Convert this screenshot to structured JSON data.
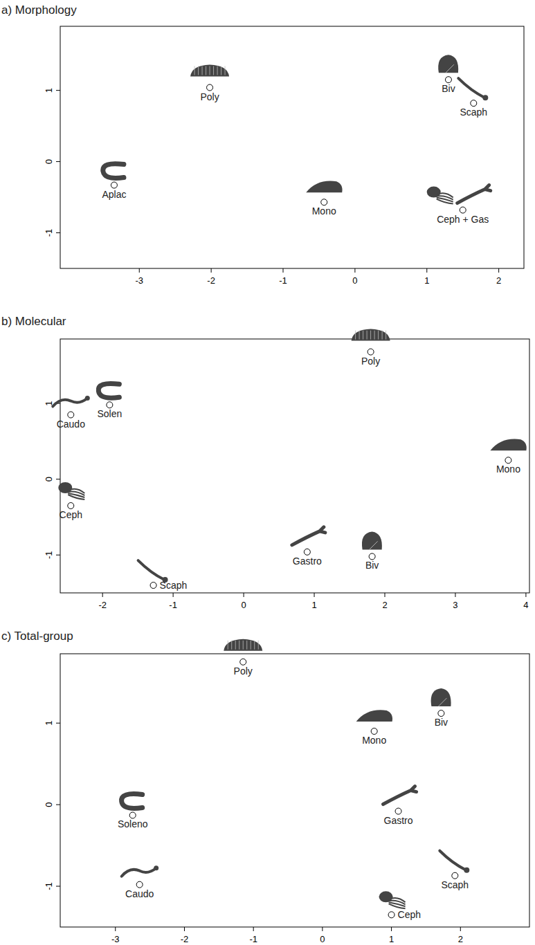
{
  "chart_data": [
    {
      "type": "scatter",
      "title": "a)  Morphology",
      "xlim": [
        -4.1,
        2.35
      ],
      "ylim": [
        -1.5,
        1.9
      ],
      "xticks": [
        -3,
        -2,
        -1,
        0,
        1,
        2
      ],
      "yticks": [
        -1,
        0,
        1
      ],
      "series": [
        {
          "name": "Poly",
          "marker": "chiton",
          "x": [
            -2.02
          ],
          "values": [
            1.04
          ]
        },
        {
          "name": "Aplac",
          "marker": "worm-c",
          "x": [
            -3.35
          ],
          "values": [
            -0.33
          ]
        },
        {
          "name": "Mono",
          "marker": "cap",
          "x": [
            -0.43
          ],
          "values": [
            -0.57
          ]
        },
        {
          "name": "Biv",
          "marker": "clam",
          "x": [
            1.3
          ],
          "values": [
            1.15
          ]
        },
        {
          "name": "Scaph",
          "marker": "tusk",
          "x": [
            1.65
          ],
          "values": [
            0.82
          ]
        },
        {
          "name": "Ceph + Gas",
          "marker": "octopus-slug",
          "x": [
            1.5
          ],
          "values": [
            -0.68
          ]
        }
      ]
    },
    {
      "type": "scatter",
      "title": "b)  Molecular",
      "xlim": [
        -2.6,
        4.05
      ],
      "ylim": [
        -1.5,
        1.85
      ],
      "xticks": [
        -2,
        -1,
        0,
        1,
        2,
        3,
        4
      ],
      "yticks": [
        -1,
        0,
        1
      ],
      "series": [
        {
          "name": "Poly",
          "marker": "chiton",
          "x": [
            1.8
          ],
          "values": [
            1.68
          ]
        },
        {
          "name": "Solen",
          "marker": "worm-c",
          "x": [
            -1.9
          ],
          "values": [
            0.98
          ]
        },
        {
          "name": "Caudo",
          "marker": "worm",
          "x": [
            -2.45
          ],
          "values": [
            0.85
          ]
        },
        {
          "name": "Mono",
          "marker": "cap",
          "x": [
            3.75
          ],
          "values": [
            0.25
          ]
        },
        {
          "name": "Ceph",
          "marker": "octopus",
          "x": [
            -2.45
          ],
          "values": [
            -0.35
          ]
        },
        {
          "name": "Scaph",
          "marker": "tusk",
          "x": [
            -1.28
          ],
          "values": [
            -1.4
          ]
        },
        {
          "name": "Gastro",
          "marker": "slug",
          "x": [
            0.9
          ],
          "values": [
            -0.96
          ]
        },
        {
          "name": "Biv",
          "marker": "clam",
          "x": [
            1.82
          ],
          "values": [
            -1.02
          ]
        }
      ]
    },
    {
      "type": "scatter",
      "title": "c)  Total-group",
      "xlim": [
        -3.8,
        3.0
      ],
      "ylim": [
        -1.5,
        1.85
      ],
      "xticks": [
        -3,
        -2,
        -1,
        0,
        1,
        2
      ],
      "yticks": [
        -1,
        0,
        1
      ],
      "series": [
        {
          "name": "Poly",
          "marker": "chiton",
          "x": [
            -1.15
          ],
          "values": [
            1.75
          ]
        },
        {
          "name": "Mono",
          "marker": "cap",
          "x": [
            0.75
          ],
          "values": [
            0.9
          ]
        },
        {
          "name": "Biv",
          "marker": "clam",
          "x": [
            1.72
          ],
          "values": [
            1.12
          ]
        },
        {
          "name": "Soleno",
          "marker": "worm-c",
          "x": [
            -2.75
          ],
          "values": [
            -0.13
          ]
        },
        {
          "name": "Gastro",
          "marker": "slug",
          "x": [
            1.1
          ],
          "values": [
            -0.08
          ]
        },
        {
          "name": "Caudo",
          "marker": "worm",
          "x": [
            -2.65
          ],
          "values": [
            -0.98
          ]
        },
        {
          "name": "Scaph",
          "marker": "tusk",
          "x": [
            1.92
          ],
          "values": [
            -0.87
          ]
        },
        {
          "name": "Ceph",
          "marker": "octopus",
          "x": [
            1.0
          ],
          "values": [
            -1.35
          ]
        }
      ]
    }
  ]
}
